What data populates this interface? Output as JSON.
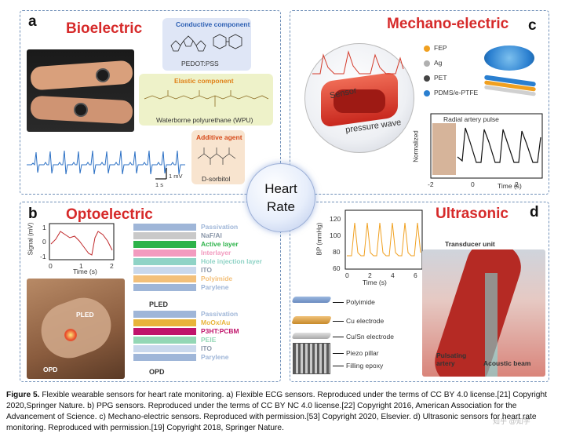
{
  "hub": {
    "line1": "Heart",
    "line2": "Rate"
  },
  "panel_a": {
    "label": "a",
    "title": "Bioelectric",
    "conductive_title": "Conductive component",
    "conductive_name": "PEDOT:PSS",
    "elastic_title": "Elastic component",
    "elastic_name": "Waterborne polyurethane (WPU)",
    "additive_title": "Additive agent",
    "additive_name": "D-sorbitol",
    "scale_v": "1 mV",
    "scale_t": "1 s"
  },
  "panel_b": {
    "label": "b",
    "title": "Optoelectric",
    "ylabel": "Signal (mV)",
    "xlabel": "Time (s)",
    "x_ticks": [
      "0",
      "1",
      "2"
    ],
    "y_ticks": [
      "1",
      "0",
      "-1"
    ],
    "photo_labels": {
      "pled": "PLED",
      "opd": "OPD"
    },
    "pled_label": "PLED",
    "opd_label": "OPD",
    "pled_layers": [
      {
        "name": "Passivation",
        "color": "#9fb6d8"
      },
      {
        "name": "NaF/Al",
        "color": "#c9c9c9"
      },
      {
        "name": "Active layer",
        "color": "#2db34a"
      },
      {
        "name": "Interlayer",
        "color": "#f29bbf"
      },
      {
        "name": "Hole injection layer",
        "color": "#8fd3c6"
      },
      {
        "name": "ITO",
        "color": "#c9d8ec"
      },
      {
        "name": "Polyimide",
        "color": "#f3c07a"
      },
      {
        "name": "Parylene",
        "color": "#9fb6d8"
      }
    ],
    "opd_layers": [
      {
        "name": "Passivation",
        "color": "#9fb6d8"
      },
      {
        "name": "MoOx/Au",
        "color": "#e8b43a"
      },
      {
        "name": "P3HT:PCBM",
        "color": "#c0146b"
      },
      {
        "name": "PEIE",
        "color": "#93d7b5"
      },
      {
        "name": "ITO",
        "color": "#c9d8ec"
      },
      {
        "name": "Parylene",
        "color": "#9fb6d8"
      }
    ]
  },
  "panel_c": {
    "label": "c",
    "title": "Mechano-electric",
    "legend": [
      {
        "name": "FEP",
        "color": "#f0a020"
      },
      {
        "name": "Ag",
        "color": "#b0b0b0"
      },
      {
        "name": "PET",
        "color": "#444444"
      },
      {
        "name": "PDMS/e-PTFE",
        "color": "#2a7fd0"
      }
    ],
    "sensor_label": "Sensor",
    "wave_label": "pressure wave",
    "plot_title": "Radial artery pulse",
    "ylabel": "Normalized",
    "xlabel": "Time (s)",
    "x_ticks": [
      "-2",
      "0",
      "2"
    ]
  },
  "panel_d": {
    "label": "d",
    "title": "Ultrasonic",
    "ylabel": "BP (mmHg)",
    "xlabel": "Time (s)",
    "y_ticks": [
      "120",
      "100",
      "80",
      "60"
    ],
    "x_ticks": [
      "0",
      "2",
      "4",
      "6"
    ],
    "layers": [
      "Polyimide",
      "Cu electrode",
      "Cu/Sn electrode",
      "Piezo pillar",
      "Filling epoxy"
    ],
    "transducer": "Transducer unit",
    "artery": "Pulsating\nartery",
    "beam": "Acoustic beam"
  },
  "caption": {
    "bold": "Figure 5.",
    "text": "Flexible wearable sensors for heart rate monitoring. a) Flexible ECG sensors. Reproduced under the terms of CC BY 4.0 license.[21] Copyright 2020,Springer Nature. b) PPG sensors. Reproduced under the terms of CC BY NC 4.0 license.[22] Copyright 2016, American Association for the Advancement of Science. c) Mechano-electric sensors. Reproduced with permission.[53] Copyright 2020, Elsevier. d) Ultrasonic sensors for heart rate monitoring. Reproduced with permission.[19] Copyright 2018, Springer Nature."
  },
  "watermark": "知乎 @知学"
}
